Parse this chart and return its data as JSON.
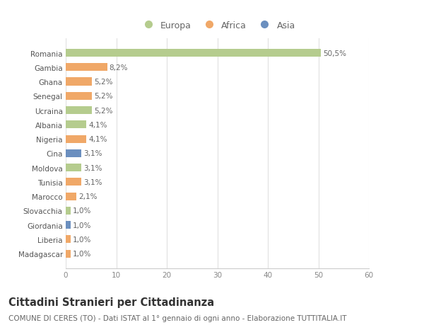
{
  "categories": [
    "Romania",
    "Gambia",
    "Ghana",
    "Senegal",
    "Ucraina",
    "Albania",
    "Nigeria",
    "Cina",
    "Moldova",
    "Tunisia",
    "Marocco",
    "Slovacchia",
    "Giordania",
    "Liberia",
    "Madagascar"
  ],
  "values": [
    50.5,
    8.2,
    5.2,
    5.2,
    5.2,
    4.1,
    4.1,
    3.1,
    3.1,
    3.1,
    2.1,
    1.0,
    1.0,
    1.0,
    1.0
  ],
  "labels": [
    "50,5%",
    "8,2%",
    "5,2%",
    "5,2%",
    "5,2%",
    "4,1%",
    "4,1%",
    "3,1%",
    "3,1%",
    "3,1%",
    "2,1%",
    "1,0%",
    "1,0%",
    "1,0%",
    "1,0%"
  ],
  "continents": [
    "Europa",
    "Africa",
    "Africa",
    "Africa",
    "Europa",
    "Europa",
    "Africa",
    "Asia",
    "Europa",
    "Africa",
    "Africa",
    "Europa",
    "Asia",
    "Africa",
    "Africa"
  ],
  "colors": {
    "Europa": "#b5cc8e",
    "Africa": "#f0a868",
    "Asia": "#6b8fbf"
  },
  "legend": [
    "Europa",
    "Africa",
    "Asia"
  ],
  "legend_colors": [
    "#b5cc8e",
    "#f0a868",
    "#6b8fbf"
  ],
  "xlim": [
    0,
    60
  ],
  "xticks": [
    0,
    10,
    20,
    30,
    40,
    50,
    60
  ],
  "title": "Cittadini Stranieri per Cittadinanza",
  "subtitle": "COMUNE DI CERES (TO) - Dati ISTAT al 1° gennaio di ogni anno - Elaborazione TUTTITALIA.IT",
  "background_color": "#ffffff",
  "grid_color": "#e0e0e0",
  "bar_height": 0.55,
  "title_fontsize": 10.5,
  "subtitle_fontsize": 7.5,
  "label_fontsize": 7.5,
  "tick_fontsize": 7.5,
  "legend_fontsize": 9
}
